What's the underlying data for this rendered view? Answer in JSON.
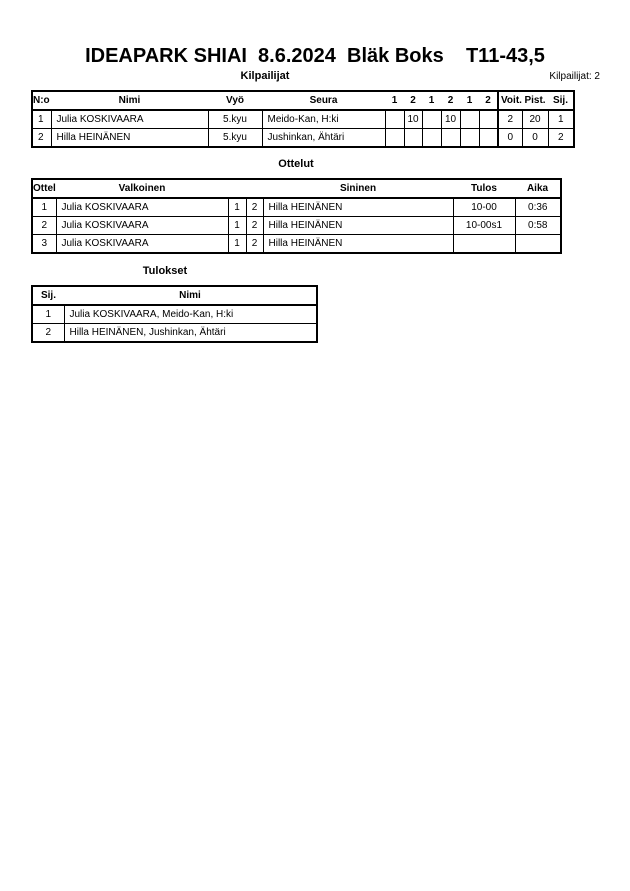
{
  "title": "IDEAPARK SHIAI  8.6.2024  Bläk Boks    T11-43,5",
  "competitors": {
    "heading": "Kilpailijat",
    "count_label": "Kilpailijat: 2",
    "headers": [
      "N:o",
      "Nimi",
      "Vyö",
      "Seura",
      "1",
      "2",
      "1",
      "2",
      "1",
      "2",
      "Voit.",
      "Pist.",
      "Sij."
    ],
    "rows": [
      [
        "1",
        "Julia KOSKIVAARA",
        "5.kyu",
        "Meido-Kan, H:ki",
        "",
        "10",
        "",
        "10",
        "",
        "",
        "2",
        "20",
        "1"
      ],
      [
        "2",
        "Hilla HEINÄNEN",
        "5.kyu",
        "Jushinkan, Ähtäri",
        "",
        "",
        "",
        "",
        "",
        "",
        "0",
        "0",
        "2"
      ]
    ]
  },
  "matches": {
    "heading": "Ottelut",
    "headers": [
      "Ottelu",
      "Valkoinen",
      "",
      "",
      "Sininen",
      "Tulos",
      "Aika"
    ],
    "rows": [
      [
        "1",
        "Julia KOSKIVAARA",
        "1",
        "2",
        "Hilla HEINÄNEN",
        "10-00",
        "0:36"
      ],
      [
        "2",
        "Julia KOSKIVAARA",
        "1",
        "2",
        "Hilla HEINÄNEN",
        "10-00s1",
        "0:58"
      ],
      [
        "3",
        "Julia KOSKIVAARA",
        "1",
        "2",
        "Hilla HEINÄNEN",
        "",
        ""
      ]
    ]
  },
  "results": {
    "heading": "Tulokset",
    "headers": [
      "Sij.",
      "Nimi"
    ],
    "rows": [
      [
        "1",
        "Julia KOSKIVAARA, Meido-Kan, H:ki"
      ],
      [
        "2",
        "Hilla HEINÄNEN, Jushinkan, Ähtäri"
      ]
    ]
  }
}
